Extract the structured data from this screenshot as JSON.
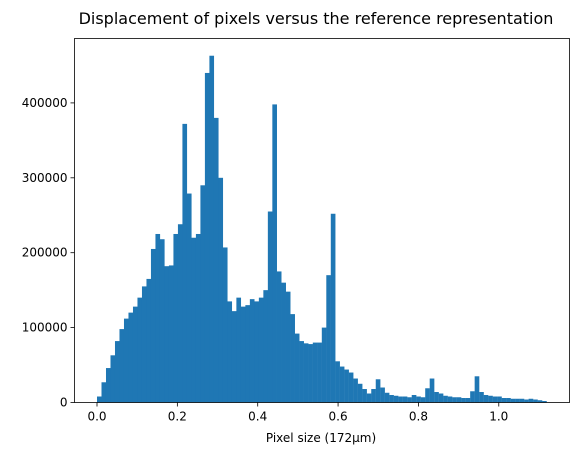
{
  "chart_data": {
    "type": "bar",
    "title": "Displacement of pixels versus the reference representation",
    "xlabel": "Pixel size (172µm)",
    "ylabel": "",
    "xlim": [
      -0.056,
      1.176
    ],
    "ylim": [
      0,
      486000
    ],
    "xticks": [
      0.0,
      0.2,
      0.4,
      0.6,
      0.8,
      1.0
    ],
    "xtick_labels": [
      "0.0",
      "0.2",
      "0.4",
      "0.6",
      "0.8",
      "1.0"
    ],
    "yticks": [
      0,
      100000,
      200000,
      300000,
      400000
    ],
    "ytick_labels": [
      "0",
      "100000",
      "200000",
      "300000",
      "400000"
    ],
    "bar_color": "#1f77b4",
    "grid": false,
    "bins": {
      "start": 0.0,
      "width": 0.01119,
      "counts": [
        8000,
        27000,
        46000,
        63000,
        82000,
        98000,
        112000,
        120000,
        128000,
        140000,
        155000,
        165000,
        205000,
        225000,
        218000,
        182000,
        183000,
        225000,
        238000,
        372000,
        279000,
        220000,
        225000,
        290000,
        440000,
        463000,
        380000,
        300000,
        207000,
        135000,
        122000,
        140000,
        128000,
        130000,
        138000,
        135000,
        140000,
        150000,
        255000,
        398000,
        175000,
        160000,
        148000,
        118000,
        92000,
        82000,
        79000,
        78000,
        80000,
        80000,
        100000,
        170000,
        252000,
        55000,
        48000,
        44000,
        40000,
        32000,
        25000,
        18000,
        12000,
        18000,
        31000,
        20000,
        13000,
        10000,
        9000,
        8000,
        8000,
        7000,
        10000,
        8000,
        7000,
        19000,
        32000,
        14000,
        12000,
        9000,
        8000,
        7000,
        7000,
        6000,
        6000,
        15000,
        35000,
        14000,
        10000,
        9000,
        8000,
        8000,
        6000,
        6000,
        5000,
        5000,
        5000,
        4000,
        5000,
        4000,
        3000,
        2000
      ]
    }
  }
}
